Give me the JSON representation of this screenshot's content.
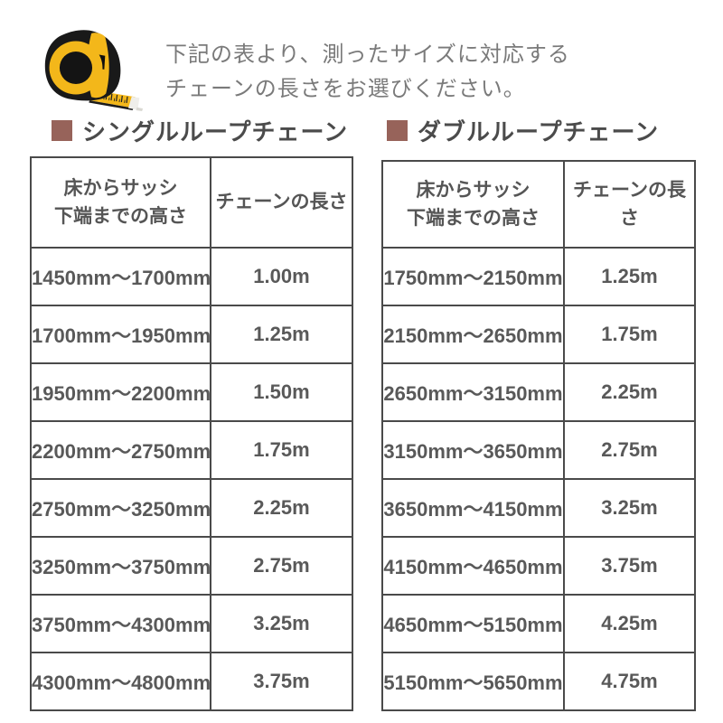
{
  "header": {
    "icon": "tape-measure-icon",
    "intro_lines": [
      "下記の表より、測ったサイズに対応する",
      "チェーンの長さをお選びください。"
    ]
  },
  "sections": [
    {
      "title": "シングルループチェーン",
      "bullet_icon": "square-bullet",
      "table": {
        "headers": {
          "col1": [
            "床からサッシ",
            "下端までの高さ"
          ],
          "col2": "チェーンの長さ"
        },
        "rows": [
          [
            "1450mm〜1700mm",
            "1.00m"
          ],
          [
            "1700mm〜1950mm",
            "1.25m"
          ],
          [
            "1950mm〜2200mm",
            "1.50m"
          ],
          [
            "2200mm〜2750mm",
            "1.75m"
          ],
          [
            "2750mm〜3250mm",
            "2.25m"
          ],
          [
            "3250mm〜3750mm",
            "2.75m"
          ],
          [
            "3750mm〜4300mm",
            "3.25m"
          ],
          [
            "4300mm〜4800mm",
            "3.75m"
          ]
        ]
      }
    },
    {
      "title": "ダブルループチェーン",
      "bullet_icon": "square-bullet",
      "table": {
        "headers": {
          "col1": [
            "床からサッシ",
            "下端までの高さ"
          ],
          "col2": "チェーンの長さ"
        },
        "rows": [
          [
            "1750mm〜2150mm",
            "1.25m"
          ],
          [
            "2150mm〜2650mm",
            "1.75m"
          ],
          [
            "2650mm〜3150mm",
            "2.25m"
          ],
          [
            "3150mm〜3650mm",
            "2.75m"
          ],
          [
            "3650mm〜4150mm",
            "3.25m"
          ],
          [
            "4150mm〜4650mm",
            "3.75m"
          ],
          [
            "4650mm〜5150mm",
            "4.25m"
          ],
          [
            "5150mm〜5650mm",
            "4.75m"
          ]
        ]
      }
    }
  ],
  "colors": {
    "accent_square": "#97635a",
    "title_text": "#4b4b4b",
    "intro_text": "#7a7a7a",
    "table_border": "#4a4a4a",
    "cell_text": "#595959",
    "tape_yellow": "#f3b71a",
    "tape_black": "#191919"
  }
}
